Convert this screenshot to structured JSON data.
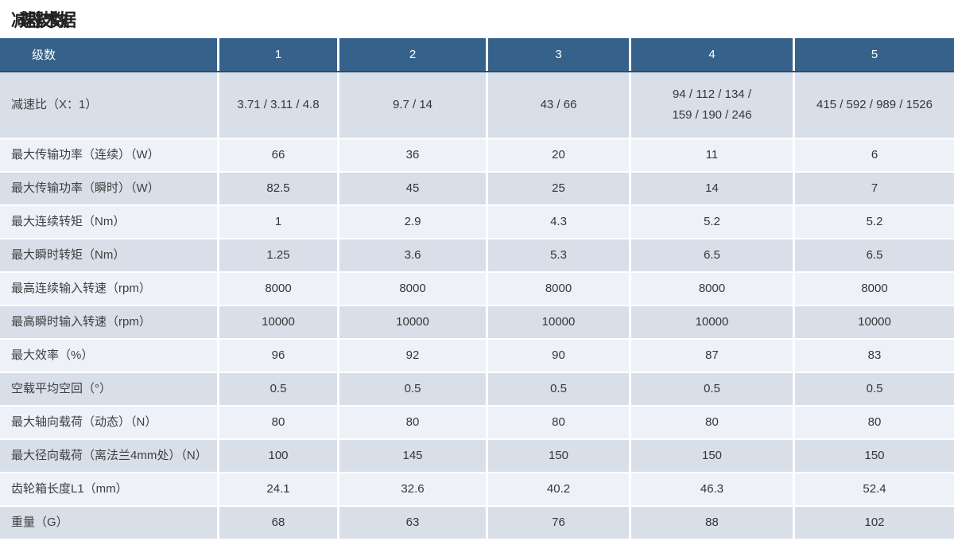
{
  "page": {
    "title": "减速器技术数据"
  },
  "table": {
    "colors": {
      "header_bg": "#35618a",
      "header_edge": "#2b4f72",
      "row_dark": "#d9dfe9",
      "row_light": "#eef1f8",
      "separator": "#ffffff",
      "header_text": "#ffffff",
      "label_text": "#3f3f3f",
      "value_text": "#363636"
    },
    "header": {
      "label": "级数",
      "columns": [
        "1",
        "2",
        "3",
        "4",
        "5"
      ]
    },
    "rows": [
      {
        "label": "减速比（X：1）",
        "tall": true,
        "values": [
          "3.71 / 3.11 / 4.8",
          "9.7 / 14",
          "43 / 66",
          "94 / 112 / 134 /\n159 / 190 / 246",
          "415 / 592 / 989 / 1526"
        ]
      },
      {
        "label": "最大传输功率（连续）（W）",
        "values": [
          "66",
          "36",
          "20",
          "11",
          "6"
        ]
      },
      {
        "label": "最大传输功率（瞬时）（W）",
        "values": [
          "82.5",
          "45",
          "25",
          "14",
          "7"
        ]
      },
      {
        "label": "最大连续转矩（Nm）",
        "values": [
          "1",
          "2.9",
          "4.3",
          "5.2",
          "5.2"
        ]
      },
      {
        "label": "最大瞬时转矩（Nm）",
        "values": [
          "1.25",
          "3.6",
          "5.3",
          "6.5",
          "6.5"
        ]
      },
      {
        "label": "最高连续输入转速（rpm）",
        "values": [
          "8000",
          "8000",
          "8000",
          "8000",
          "8000"
        ]
      },
      {
        "label": "最高瞬时输入转速（rpm）",
        "values": [
          "10000",
          "10000",
          "10000",
          "10000",
          "10000"
        ]
      },
      {
        "label": "最大效率（%）",
        "values": [
          "96",
          "92",
          "90",
          "87",
          "83"
        ]
      },
      {
        "label": "空载平均空回（°）",
        "values": [
          "0.5",
          "0.5",
          "0.5",
          "0.5",
          "0.5"
        ]
      },
      {
        "label": "最大轴向载荷（动态）（N）",
        "values": [
          "80",
          "80",
          "80",
          "80",
          "80"
        ]
      },
      {
        "label": "最大径向载荷（离法兰4mm处）（N）",
        "values": [
          "100",
          "145",
          "150",
          "150",
          "150"
        ]
      },
      {
        "label": "齿轮箱长度L1（mm）",
        "values": [
          "24.1",
          "32.6",
          "40.2",
          "46.3",
          "52.4"
        ]
      },
      {
        "label": "重量（G）",
        "values": [
          "68",
          "63",
          "76",
          "88",
          "102"
        ]
      }
    ]
  }
}
